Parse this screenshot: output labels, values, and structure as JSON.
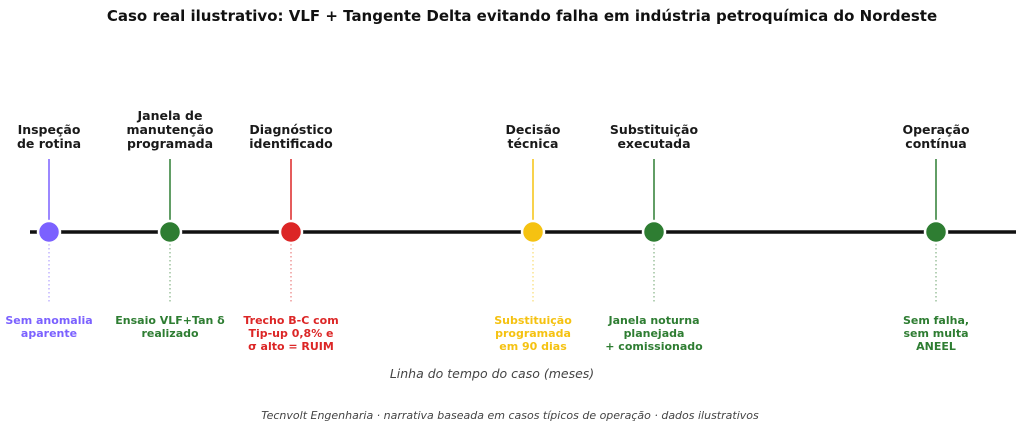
{
  "title": "Caso real ilustrativo: VLF + Tangente Delta evitando falha em indústria petroquímica do Nordeste",
  "axis_label": "Linha do tempo do caso (meses)",
  "footer": "Tecnvolt Engenharia · narrativa baseada em casos típicos de operação · dados ilustrativos",
  "events": [
    {
      "label": [
        "Inspeção",
        "de rotina"
      ],
      "description": [
        "Sem anomalia",
        "aparente"
      ],
      "color": "#7b61ff"
    },
    {
      "label": [
        "Janela de",
        "manutenção",
        "programada"
      ],
      "description": [
        "Ensaio VLF+Tan δ",
        "realizado"
      ],
      "color": "#2e7d32"
    },
    {
      "label": [
        "Diagnóstico",
        "identificado"
      ],
      "description": [
        "Trecho B-C com",
        "Tip-up 0,8% e",
        "σ alto = RUIM"
      ],
      "color": "#dc2626"
    },
    {
      "label": [
        "Decisão",
        "técnica"
      ],
      "description": [
        "Substituição",
        "programada",
        "em 90 dias"
      ],
      "color": "#f5c211"
    },
    {
      "label": [
        "Substituição",
        "executada"
      ],
      "description": [
        "Janela noturna",
        "planejada",
        "+ comissionado"
      ],
      "color": "#2e7d32"
    },
    {
      "label": [
        "Operação",
        "contínua"
      ],
      "description": [
        "Sem falha,",
        "sem multa",
        "ANEEL"
      ],
      "color": "#2e7d32"
    }
  ]
}
